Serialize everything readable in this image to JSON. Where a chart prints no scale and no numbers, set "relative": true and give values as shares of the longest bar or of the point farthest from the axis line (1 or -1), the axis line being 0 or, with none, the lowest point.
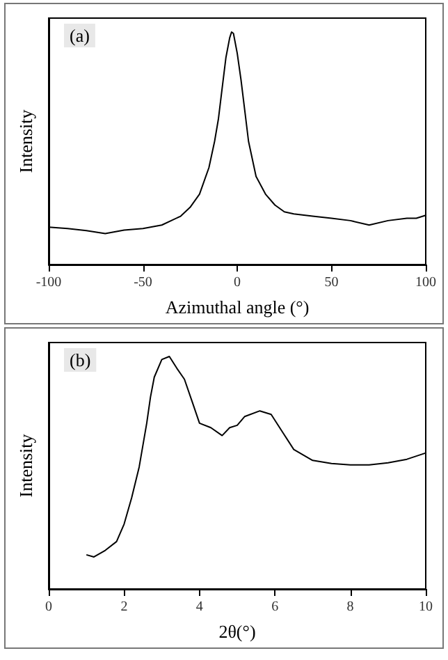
{
  "chart_data": [
    {
      "type": "line",
      "xlabel": "Azimuthal angle (°)",
      "ylabel": "Intensity",
      "annotations": [
        "(a)"
      ],
      "relative": true,
      "grid": false,
      "xlim": [
        -100,
        100
      ],
      "xticks": [
        -100,
        -50,
        0,
        50,
        100
      ],
      "series": [
        {
          "color": "#000000",
          "x": [
            -100,
            -90,
            -80,
            -70,
            -60,
            -50,
            -40,
            -30,
            -25,
            -20,
            -15,
            -12,
            -10,
            -8,
            -6,
            -4,
            -3,
            -2,
            0,
            2,
            4,
            6,
            10,
            15,
            20,
            25,
            30,
            40,
            50,
            60,
            70,
            80,
            90,
            95,
            100
          ],
          "values": [
            0.161,
            0.155,
            0.146,
            0.133,
            0.148,
            0.155,
            0.17,
            0.208,
            0.246,
            0.303,
            0.417,
            0.53,
            0.625,
            0.758,
            0.89,
            0.975,
            1,
            0.994,
            0.909,
            0.795,
            0.663,
            0.53,
            0.379,
            0.303,
            0.256,
            0.227,
            0.218,
            0.208,
            0.199,
            0.189,
            0.17,
            0.189,
            0.199,
            0.199,
            0.212
          ]
        }
      ]
    },
    {
      "type": "line",
      "xlabel": "2θ(°)",
      "ylabel": "Intensity",
      "annotations": [
        "(b)"
      ],
      "relative": true,
      "grid": false,
      "xlim": [
        0,
        10
      ],
      "xticks": [
        0,
        2,
        4,
        6,
        8,
        10
      ],
      "series": [
        {
          "color": "#000000",
          "x": [
            1.0,
            1.2,
            1.5,
            1.8,
            2.0,
            2.2,
            2.4,
            2.6,
            2.7,
            2.8,
            3.0,
            3.2,
            3.4,
            3.6,
            3.8,
            4.0,
            4.3,
            4.6,
            4.8,
            5.0,
            5.2,
            5.6,
            5.9,
            6.2,
            6.5,
            7.0,
            7.5,
            8.0,
            8.5,
            9.0,
            9.5,
            10.0
          ],
          "values": [
            0.147,
            0.138,
            0.166,
            0.204,
            0.279,
            0.392,
            0.525,
            0.713,
            0.826,
            0.911,
            0.987,
            1,
            0.949,
            0.902,
            0.808,
            0.713,
            0.694,
            0.66,
            0.694,
            0.704,
            0.742,
            0.766,
            0.751,
            0.675,
            0.6,
            0.553,
            0.54,
            0.534,
            0.534,
            0.543,
            0.558,
            0.585
          ]
        }
      ]
    }
  ]
}
